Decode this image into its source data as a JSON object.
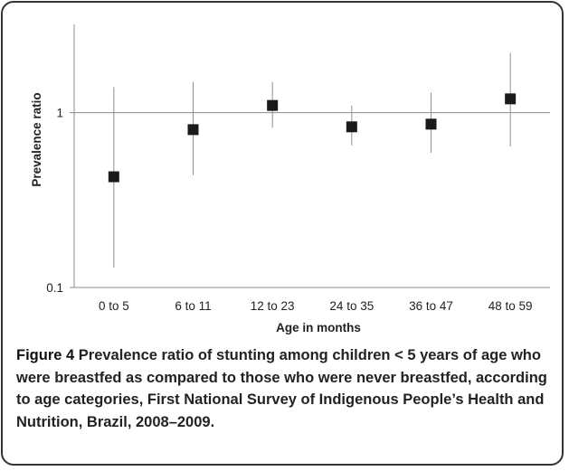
{
  "chart_data": {
    "type": "scatter",
    "error_bars": true,
    "y_scale": "log",
    "categories": [
      "0 to 5",
      "6 to 11",
      "12 to 23",
      "24 to 35",
      "36 to 47",
      "48 to 59"
    ],
    "points": [
      {
        "category": "0 to 5",
        "value": 0.43,
        "lower": 0.13,
        "upper": 1.4
      },
      {
        "category": "6 to 11",
        "value": 0.8,
        "lower": 0.44,
        "upper": 1.5
      },
      {
        "category": "12 to 23",
        "value": 1.1,
        "lower": 0.82,
        "upper": 1.5
      },
      {
        "category": "24 to 35",
        "value": 0.83,
        "lower": 0.65,
        "upper": 1.1
      },
      {
        "category": "36 to 47",
        "value": 0.86,
        "lower": 0.59,
        "upper": 1.3
      },
      {
        "category": "48 to 59",
        "value": 1.2,
        "lower": 0.64,
        "upper": 2.2
      }
    ],
    "xlabel": "Age in months",
    "ylabel": "Prevalence ratio",
    "ylim": [
      0.1,
      3.2
    ],
    "yticks": [
      "0.1",
      "1"
    ],
    "ytick_values": [
      0.1,
      1
    ],
    "reference_line": 1,
    "marker_color": "#1a1a1a",
    "axis_color": "#8c8c8c"
  },
  "caption": {
    "label": "Figure 4",
    "text": "Prevalence ratio of stunting among children < 5 years of age who were breastfed as compared to those who were never breastfed, according to age categories, First National Survey of Indigenous People’s Health and Nutrition, Brazil, 2008–2009."
  }
}
